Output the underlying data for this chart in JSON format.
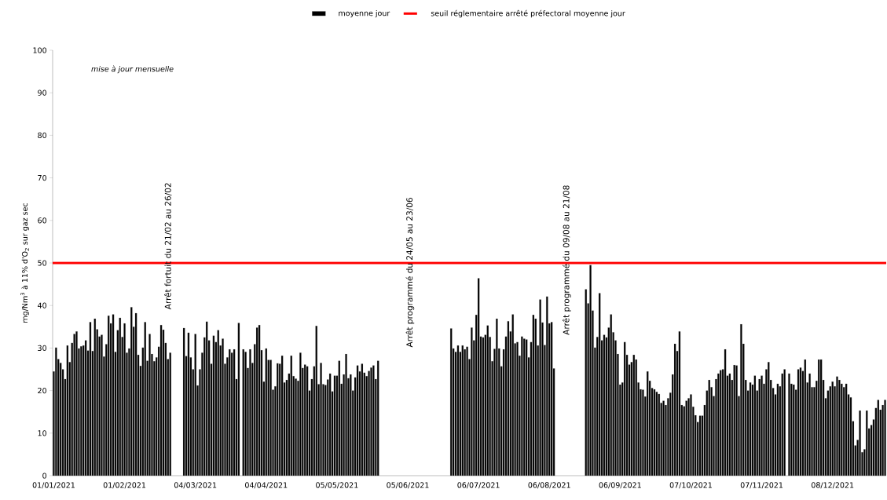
{
  "chart_data": {
    "type": "bar",
    "ylabel": "mg/Nm$^{3}$ à 11% d'O$_{2}$ sur gaz sec",
    "annotations": [
      "mise à jour mensuelle",
      "Arrêt fortuit du 21/02 au 26/02",
      "Arrêt programmé du 24/05 au 23/06",
      "Arrêt programmé du 09/08 au 21/08"
    ],
    "categories": [
      "01/01/2021",
      null,
      null,
      null,
      null,
      null,
      null,
      null,
      null,
      null,
      null,
      null,
      null,
      null,
      null,
      null,
      null,
      null,
      null,
      null,
      null,
      null,
      null,
      null,
      null,
      null,
      null,
      null,
      null,
      null,
      null,
      "01/02/2021",
      null,
      null,
      null,
      null,
      null,
      null,
      null,
      null,
      null,
      null,
      null,
      null,
      null,
      null,
      null,
      null,
      null,
      null,
      null,
      null,
      null,
      null,
      null,
      null,
      null,
      null,
      null,
      null,
      null,
      null,
      "04/03/2021",
      null,
      null,
      null,
      null,
      null,
      null,
      null,
      null,
      null,
      null,
      null,
      null,
      null,
      null,
      null,
      null,
      null,
      null,
      null,
      null,
      null,
      null,
      null,
      null,
      null,
      null,
      null,
      null,
      null,
      null,
      "04/04/2021",
      null,
      null,
      null,
      null,
      null,
      null,
      null,
      null,
      null,
      null,
      null,
      null,
      null,
      null,
      null,
      null,
      null,
      null,
      null,
      null,
      null,
      null,
      null,
      null,
      null,
      null,
      null,
      null,
      null,
      null,
      "05/05/2021",
      null,
      null,
      null,
      null,
      null,
      null,
      null,
      null,
      null,
      null,
      null,
      null,
      null,
      null,
      null,
      null,
      null,
      null,
      null,
      null,
      null,
      null,
      null,
      null,
      null,
      null,
      null,
      null,
      null,
      null,
      "05/06/2021",
      null,
      null,
      null,
      null,
      null,
      null,
      null,
      null,
      null,
      null,
      null,
      null,
      null,
      null,
      null,
      null,
      null,
      null,
      null,
      null,
      null,
      null,
      null,
      null,
      null,
      null,
      null,
      null,
      null,
      null,
      "06/07/2021",
      null,
      null,
      null,
      null,
      null,
      null,
      null,
      null,
      null,
      null,
      null,
      null,
      null,
      null,
      null,
      null,
      null,
      null,
      null,
      null,
      null,
      null,
      null,
      null,
      null,
      null,
      null,
      null,
      null,
      null,
      "06/08/2021",
      null,
      null,
      null,
      null,
      null,
      null,
      null,
      null,
      null,
      null,
      null,
      null,
      null,
      null,
      null,
      null,
      null,
      null,
      null,
      null,
      null,
      null,
      null,
      null,
      null,
      null,
      null,
      null,
      null,
      null,
      "06/09/2021",
      null,
      null,
      null,
      null,
      null,
      null,
      null,
      null,
      null,
      null,
      null,
      null,
      null,
      null,
      null,
      null,
      null,
      null,
      null,
      null,
      null,
      null,
      null,
      null,
      null,
      null,
      null,
      null,
      null,
      null,
      "07/10/2021",
      null,
      null,
      null,
      null,
      null,
      null,
      null,
      null,
      null,
      null,
      null,
      null,
      null,
      null,
      null,
      null,
      null,
      null,
      null,
      null,
      null,
      null,
      null,
      null,
      null,
      null,
      null,
      null,
      null,
      null,
      "07/11/2021",
      null,
      null,
      null,
      null,
      null,
      null,
      null,
      null,
      null,
      null,
      null,
      null,
      null,
      null,
      null,
      null,
      null,
      null,
      null,
      null,
      null,
      null,
      null,
      null,
      null,
      null,
      null,
      null,
      null,
      null,
      "08/12/2021",
      null,
      null,
      null,
      null,
      null,
      null,
      null,
      null,
      null,
      null,
      null,
      null,
      null,
      null,
      null,
      null,
      null,
      null,
      null,
      null,
      null,
      null,
      null
    ],
    "series": [
      {
        "name": "moyenne jour",
        "color": "#000000",
        "values": [
          24.5,
          30.1,
          27.4,
          26.5,
          25.0,
          22.7,
          30.6,
          26.7,
          31.2,
          33.3,
          33.9,
          29.9,
          30.4,
          30.6,
          31.8,
          29.4,
          36.1,
          29.3,
          36.9,
          34.4,
          32.7,
          33.1,
          28.0,
          30.9,
          37.6,
          35.8,
          37.9,
          29.1,
          34.2,
          37.1,
          32.6,
          35.8,
          28.9,
          29.9,
          39.6,
          35.0,
          38.2,
          28.4,
          25.8,
          30.1,
          36.1,
          27.0,
          33.3,
          28.6,
          26.9,
          27.8,
          30.3,
          35.4,
          34.3,
          31.2,
          27.4,
          28.9,
          null,
          null,
          null,
          null,
          null,
          34.7,
          28.1,
          33.6,
          27.8,
          25.0,
          33.3,
          21.2,
          25.0,
          28.9,
          32.5,
          36.2,
          31.8,
          26.3,
          32.9,
          31.4,
          34.2,
          30.6,
          32.2,
          26.3,
          27.8,
          29.7,
          28.9,
          29.7,
          22.7,
          35.9,
          null,
          29.7,
          29.1,
          25.3,
          29.7,
          26.5,
          30.9,
          34.8,
          35.4,
          29.5,
          22.1,
          29.9,
          27.2,
          27.2,
          20.2,
          21.0,
          26.4,
          26.3,
          28.2,
          21.9,
          22.5,
          24.0,
          28.2,
          23.4,
          22.8,
          22.3,
          28.9,
          25.3,
          26.1,
          25.7,
          20.0,
          22.7,
          25.7,
          35.2,
          21.5,
          26.5,
          21.5,
          21.3,
          22.6,
          24.0,
          19.8,
          23.5,
          23.5,
          27.0,
          21.6,
          23.8,
          28.6,
          22.9,
          23.8,
          20.0,
          23.1,
          25.9,
          24.5,
          26.3,
          24.2,
          23.4,
          24.6,
          25.4,
          25.9,
          22.7,
          27.0,
          null,
          null,
          null,
          null,
          null,
          null,
          null,
          null,
          null,
          null,
          null,
          null,
          null,
          null,
          null,
          null,
          null,
          null,
          null,
          null,
          null,
          null,
          null,
          null,
          null,
          null,
          null,
          null,
          null,
          null,
          null,
          34.6,
          29.9,
          29.1,
          30.6,
          29.1,
          30.6,
          29.7,
          30.3,
          27.4,
          34.8,
          31.8,
          37.8,
          46.4,
          32.7,
          32.5,
          33.1,
          35.3,
          32.6,
          26.9,
          29.8,
          36.9,
          29.9,
          25.7,
          29.7,
          32.7,
          36.3,
          33.9,
          37.9,
          31.1,
          31.4,
          28.2,
          32.7,
          32.2,
          32.0,
          27.8,
          31.4,
          37.8,
          36.9,
          30.6,
          41.4,
          36.0,
          30.7,
          42.1,
          35.8,
          36.1,
          25.2,
          null,
          null,
          null,
          null,
          null,
          null,
          null,
          null,
          null,
          null,
          null,
          null,
          null,
          43.8,
          40.5,
          49.5,
          38.8,
          30.1,
          32.6,
          42.9,
          31.8,
          33.1,
          32.5,
          34.8,
          37.9,
          33.7,
          31.8,
          28.6,
          21.4,
          21.9,
          31.4,
          28.4,
          26.1,
          26.7,
          28.4,
          27.3,
          21.9,
          20.3,
          20.2,
          18.6,
          24.5,
          22.3,
          20.6,
          20.3,
          19.7,
          19.2,
          17.1,
          17.6,
          16.6,
          18.2,
          19.5,
          23.8,
          31.0,
          29.3,
          33.9,
          16.6,
          16.3,
          17.6,
          18.2,
          19.1,
          16.2,
          14.2,
          12.6,
          14.1,
          14.1,
          16.6,
          20.0,
          22.5,
          20.8,
          18.7,
          22.7,
          24.0,
          24.8,
          25.0,
          29.7,
          23.5,
          24.0,
          22.5,
          26.0,
          25.9,
          18.7,
          35.6,
          31.0,
          22.5,
          20.0,
          21.9,
          21.4,
          23.5,
          20.0,
          22.7,
          23.5,
          21.6,
          25.0,
          26.7,
          22.5,
          20.6,
          19.1,
          21.6,
          21.0,
          24.0,
          25.0,
          null,
          24.0,
          21.6,
          21.4,
          20.2,
          25.0,
          25.4,
          24.6,
          27.3,
          21.9,
          24.0,
          20.8,
          20.8,
          22.3,
          27.3,
          27.3,
          22.5,
          18.2,
          20.0,
          21.0,
          22.1,
          21.0,
          23.3,
          22.5,
          21.6,
          20.8,
          21.6,
          19.1,
          18.4,
          12.8,
          7.1,
          8.4,
          15.3,
          5.5,
          6.2,
          15.3,
          11.1,
          11.9,
          13.2,
          15.9,
          17.8,
          15.5,
          16.6,
          17.8
        ]
      }
    ],
    "ref_lines": [
      {
        "axis": "y",
        "value": 50,
        "label": "seuil réglementaire arrêté préfectoral moyenne jour",
        "color": "#ff0000"
      }
    ],
    "ylim": [
      0,
      100
    ],
    "yticks": [
      0,
      10,
      20,
      30,
      40,
      50,
      60,
      70,
      80,
      90,
      100
    ],
    "legend": "top",
    "grid": false
  }
}
